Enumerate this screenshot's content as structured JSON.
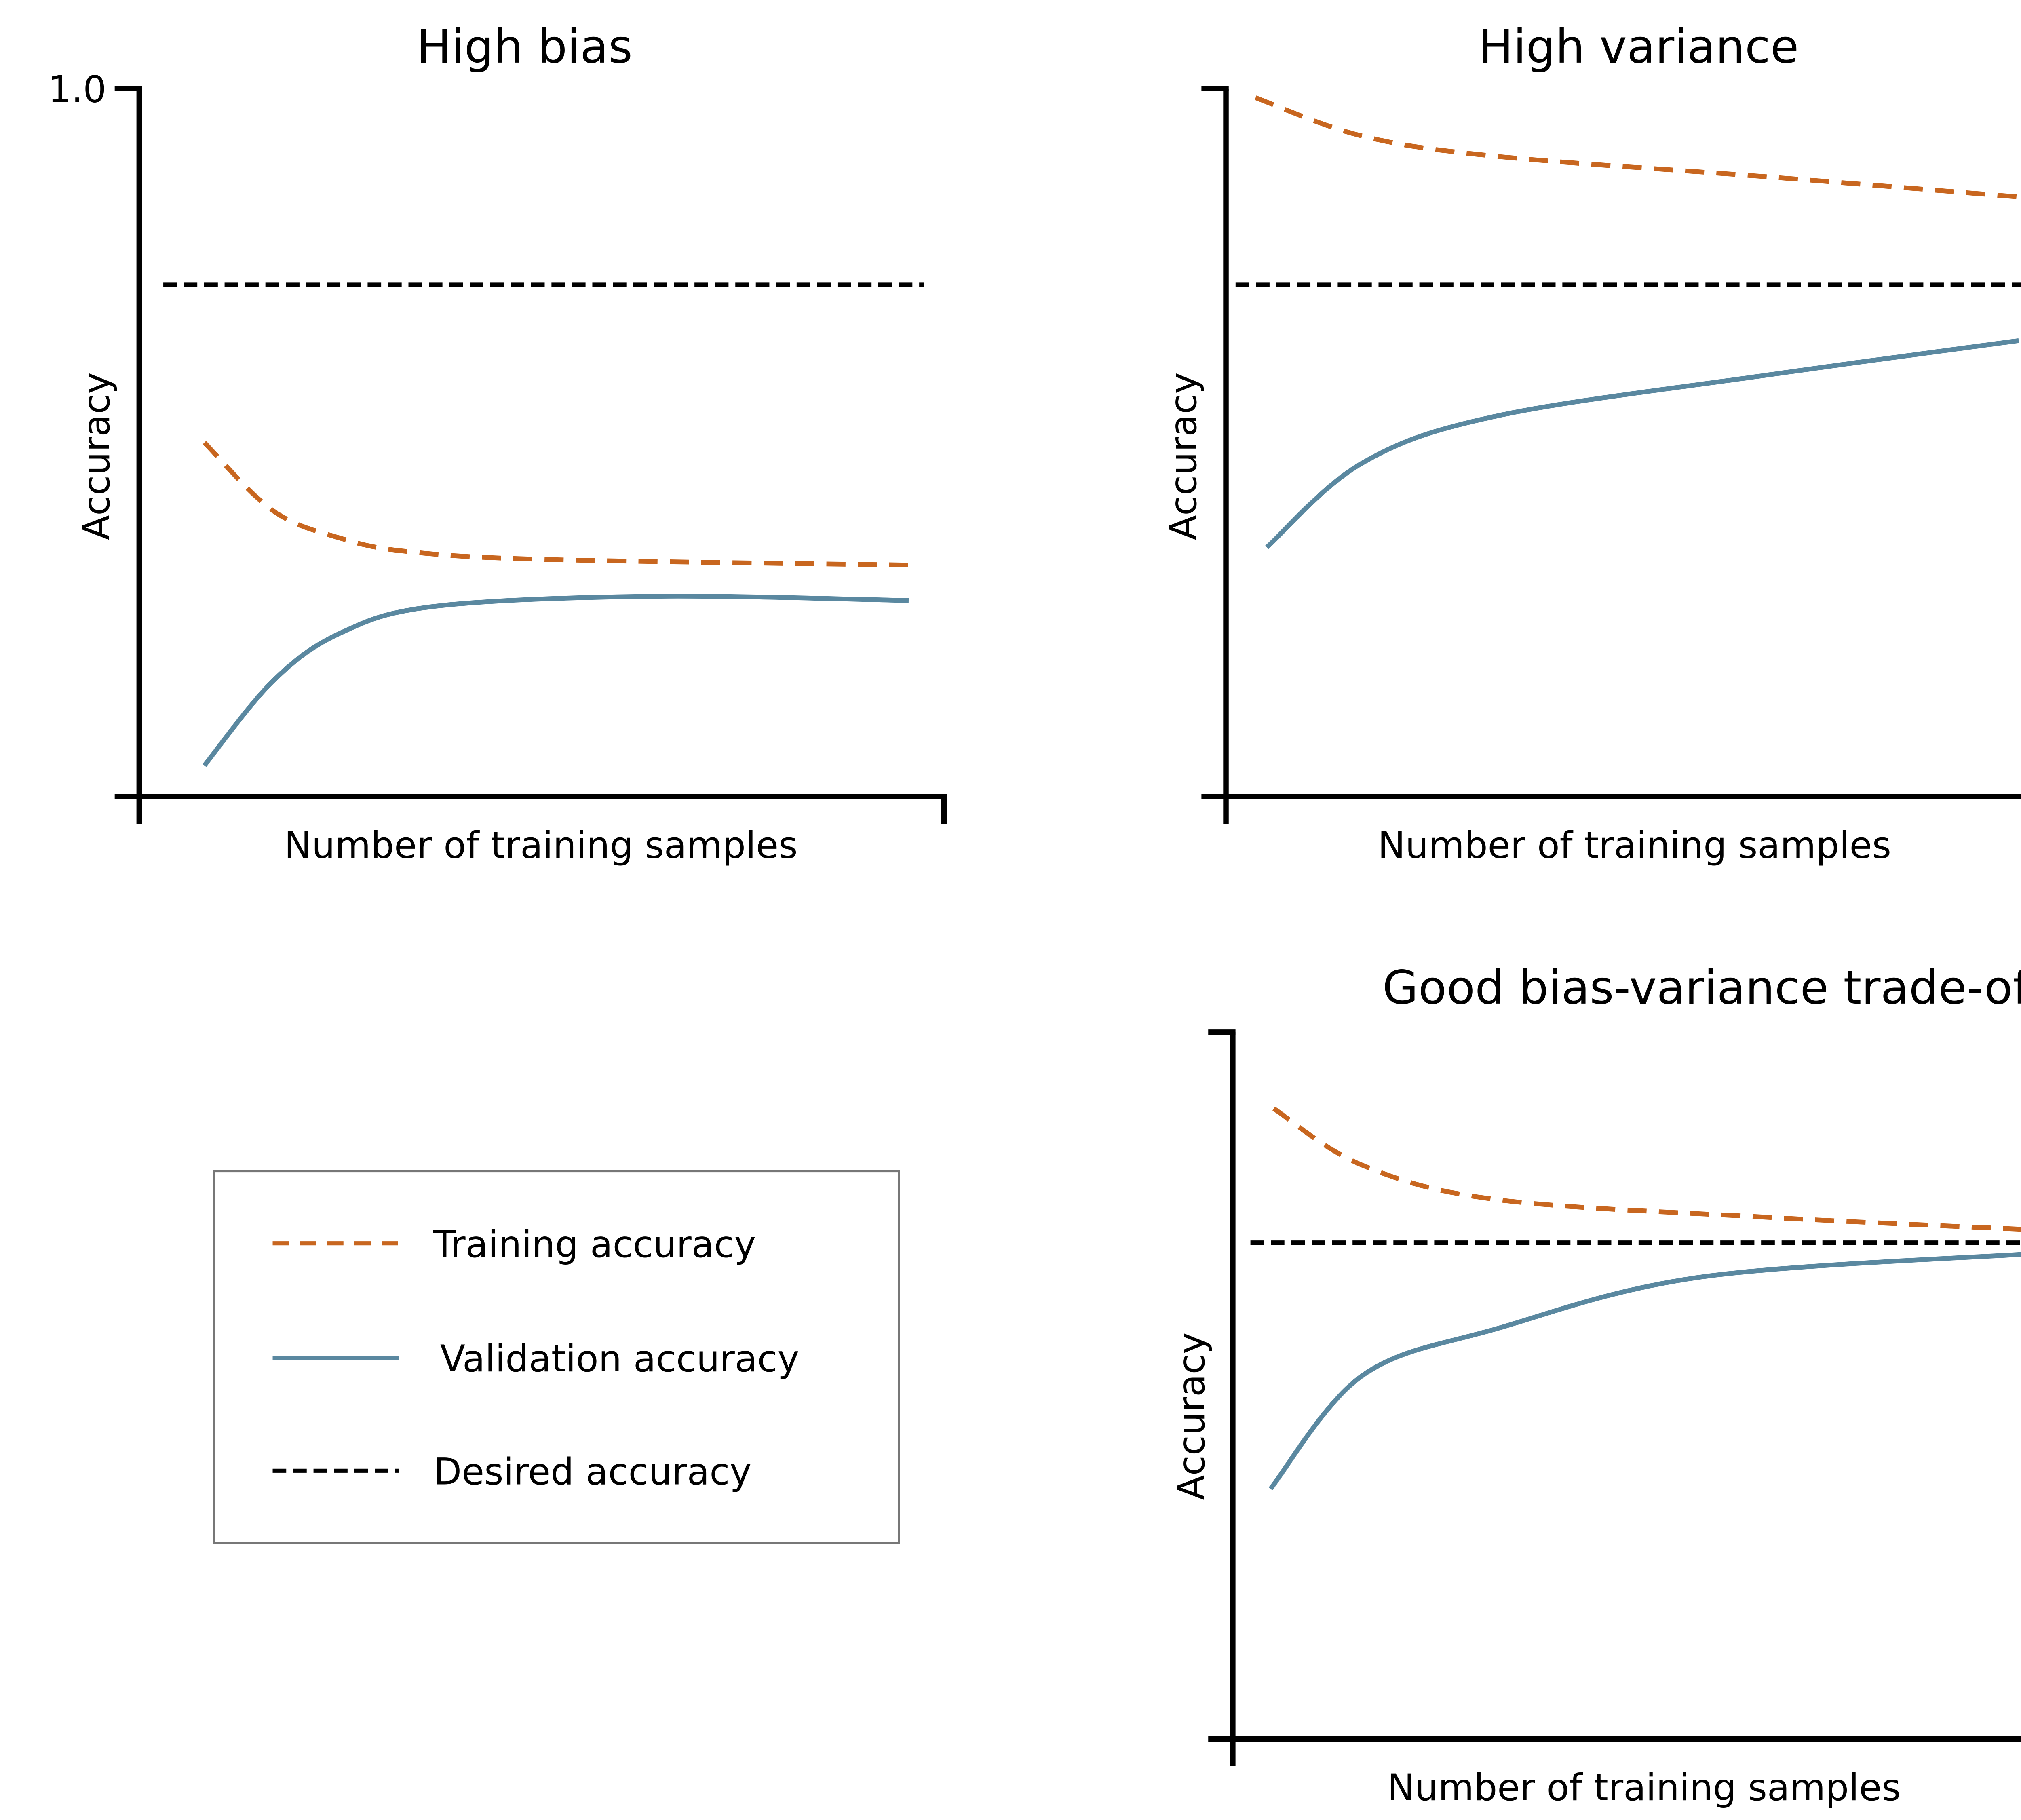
{
  "colors": {
    "training": "#c8661f",
    "validation": "#5a88a0",
    "desired": "#000000"
  },
  "legend": {
    "placement": "bottom-left",
    "entries": [
      {
        "label": "Training accuracy",
        "style": "dashed",
        "color": "#c8661f"
      },
      {
        "label": "Validation accuracy",
        "style": "solid",
        "color": "#5a88a0"
      },
      {
        "label": "Desired accuracy",
        "style": "dashed",
        "color": "#000000"
      }
    ]
  },
  "chart_data": [
    {
      "type": "line",
      "title": "High bias",
      "xlabel": "Number of training samples",
      "ylabel": "Accuracy",
      "ytick_labels": [
        "1.0"
      ],
      "ylim": [
        0,
        1
      ],
      "xlim": [
        0,
        1
      ],
      "grid": false,
      "series": [
        {
          "name": "Training accuracy",
          "x": [
            0.081,
            0.166,
            0.25,
            0.335,
            0.504,
            0.956
          ],
          "y": [
            0.5,
            0.404,
            0.365,
            0.346,
            0.335,
            0.327
          ]
        },
        {
          "name": "Validation accuracy",
          "x": [
            0.081,
            0.166,
            0.25,
            0.369,
            0.64,
            0.956
          ],
          "y": [
            0.044,
            0.163,
            0.231,
            0.269,
            0.283,
            0.277
          ]
        },
        {
          "name": "Desired accuracy",
          "x": [
            0.03,
            0.975
          ],
          "y": [
            0.723,
            0.723
          ]
        }
      ]
    },
    {
      "type": "line",
      "title": "High variance",
      "xlabel": "Number of training samples",
      "ylabel": "Accuracy",
      "ylim": [
        0,
        1
      ],
      "xlim": [
        0,
        1
      ],
      "grid": false,
      "series": [
        {
          "name": "Training accuracy",
          "x": [
            0.037,
            0.17,
            0.34,
            0.68,
            1.0
          ],
          "y": [
            0.987,
            0.933,
            0.904,
            0.875,
            0.846
          ]
        },
        {
          "name": "Validation accuracy",
          "x": [
            0.051,
            0.17,
            0.34,
            0.68,
            0.99
          ],
          "y": [
            0.352,
            0.471,
            0.538,
            0.596,
            0.644
          ]
        },
        {
          "name": "Desired accuracy",
          "x": [
            0.012,
            1.0
          ],
          "y": [
            0.723,
            0.723
          ]
        }
      ]
    },
    {
      "type": "line",
      "title": "Good bias-variance trade-off",
      "xlabel": "Number of training samples",
      "ylabel": "Accuracy",
      "ylim": [
        0,
        1
      ],
      "xlim": [
        0,
        1
      ],
      "grid": false,
      "series": [
        {
          "name": "Training accuracy",
          "x": [
            0.051,
            0.161,
            0.33,
            0.669,
            0.986
          ],
          "y": [
            0.892,
            0.812,
            0.763,
            0.738,
            0.721
          ]
        },
        {
          "name": "Validation accuracy",
          "x": [
            0.047,
            0.161,
            0.33,
            0.585,
            1.0
          ],
          "y": [
            0.354,
            0.514,
            0.581,
            0.654,
            0.687
          ]
        },
        {
          "name": "Desired accuracy",
          "x": [
            0.022,
            1.0
          ],
          "y": [
            0.702,
            0.702
          ]
        }
      ]
    }
  ]
}
